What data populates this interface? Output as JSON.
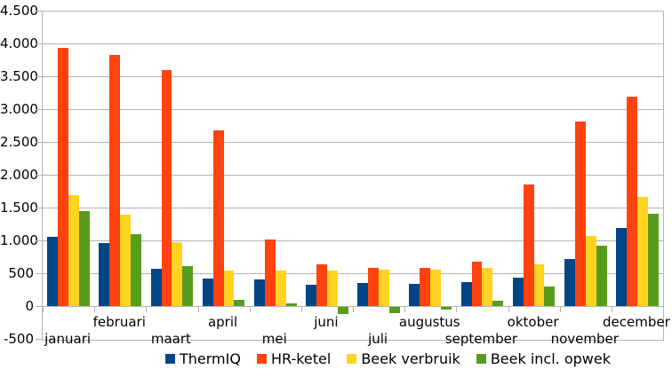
{
  "chart_data": {
    "type": "bar",
    "title": "",
    "xlabel": "",
    "ylabel": "",
    "categories": [
      "januari",
      "februari",
      "maart",
      "april",
      "mei",
      "juni",
      "juli",
      "augustus",
      "september",
      "oktober",
      "november",
      "december"
    ],
    "series": [
      {
        "name": "ThermIQ",
        "color": "#004586",
        "values": [
          1060,
          960,
          570,
          420,
          400,
          330,
          350,
          340,
          370,
          430,
          710,
          1190
        ]
      },
      {
        "name": "HR-ketel",
        "color": "#FF420E",
        "values": [
          3930,
          3820,
          3590,
          2670,
          1010,
          630,
          580,
          580,
          670,
          1850,
          2810,
          3190
        ]
      },
      {
        "name": "Beek verbruik",
        "color": "#FFD320",
        "values": [
          1690,
          1390,
          970,
          540,
          540,
          540,
          560,
          550,
          580,
          640,
          1070,
          1660
        ]
      },
      {
        "name": "Beek incl. opwek",
        "color": "#579D1C",
        "values": [
          1440,
          1100,
          610,
          100,
          40,
          -110,
          -90,
          -40,
          80,
          300,
          920,
          1400
        ]
      }
    ],
    "ylim": [
      -500,
      4500
    ],
    "y_tick_interval": 500,
    "y_tick_labels_top_to_bottom": [
      "4.500",
      "4.000",
      "3.500",
      "3.000",
      "2.500",
      "2.000",
      "1.500",
      "1.000",
      "500",
      "0",
      "-500"
    ],
    "grid": true,
    "legend_position": "bottom",
    "x_labels_staggered": true
  },
  "colors": {
    "background": "#ffffff",
    "gridline": "#b3b3b3",
    "axis": "#b3b3b3",
    "text": "#000000"
  }
}
